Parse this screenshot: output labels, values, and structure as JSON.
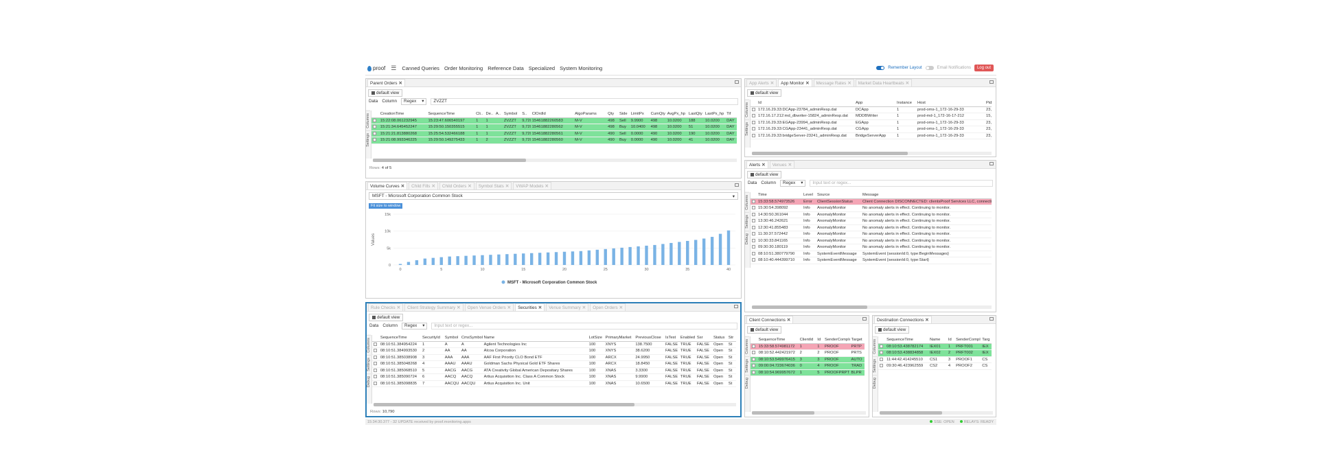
{
  "nav": {
    "logo": "proof",
    "menu": [
      "Canned Queries",
      "Order Monitoring",
      "Reference Data",
      "Specialized",
      "System Monitoring"
    ],
    "remember": "Remember Layout",
    "email": "Email Notifications",
    "logout": "Log out"
  },
  "po": {
    "tab": "Parent Orders",
    "view": "default view",
    "data": "Data",
    "column": "Column",
    "regex": "Regex",
    "filter": "ZVZZT",
    "cols": [
      "CreationTime",
      "SequenceTime",
      "Cli..",
      "De..",
      "A..",
      "Symbol",
      "S..",
      "ClOrdId",
      "AlgoParams",
      "Qty",
      "Side",
      "LimitPx",
      "CumQty",
      "AvgPx_hp",
      "LastQty",
      "LastPx_hp",
      "Tif"
    ],
    "rows": [
      [
        "15:22:08.061232945",
        "15:23:47.606540197",
        "1",
        "1",
        "",
        "ZVZZT",
        "9,720",
        "15461882260583",
        "M-V",
        "498",
        "Sell",
        "9.9900",
        "498",
        "10.0200",
        "188",
        "10.0200",
        "DAY"
      ],
      [
        "15:21:34.645452247",
        "15:29:50.150355515",
        "1",
        "1",
        "",
        "ZVZZT",
        "9,720",
        "15461882280562",
        "M-V",
        "498",
        "Buy",
        "10.0400",
        "498",
        "10.0200",
        "51",
        "10.0200",
        "DAY"
      ],
      [
        "15:21:21.813880268",
        "15:25:54.532466188",
        "1",
        "1",
        "",
        "ZVZZT",
        "9,720",
        "15461882280561",
        "M-V",
        "490",
        "Sell",
        "0.0000",
        "490",
        "10.0200",
        "190",
        "10.0200",
        "DAY"
      ],
      [
        "15:21:08.993346225",
        "15:29:50.149275433",
        "1",
        "2",
        "",
        "ZVZZT",
        "9,720",
        "15461882280560",
        "M-V",
        "490",
        "Buy",
        "0.0000",
        "490",
        "10.0200",
        "41",
        "10.0200",
        "DAY"
      ]
    ],
    "rowsLabel": "Rows:",
    "rowsCount": "4 of 5"
  },
  "vc": {
    "tabs": [
      "Volume Curves",
      "Child Fills",
      "Child Orders",
      "Symbol Stats",
      "VWAP Models"
    ],
    "symbol": "MSFT - Microsoft Corporation Common Stock",
    "fit": "Fit size to window"
  },
  "chart_data": {
    "type": "bar",
    "ylabel": "Values",
    "yticks": [
      "15k",
      "10k",
      "5k",
      "0"
    ],
    "ylim": [
      0,
      15000
    ],
    "xticks": [
      "0",
      "5",
      "10",
      "15",
      "20",
      "25",
      "30",
      "35",
      "40"
    ],
    "series": [
      {
        "name": "MSFT - Microsoft Corporation Common Stock",
        "values": [
          300,
          900,
          1400,
          1900,
          2100,
          2300,
          2500,
          2600,
          2700,
          2800,
          2900,
          3000,
          3100,
          3200,
          3300,
          3400,
          3500,
          3600,
          3700,
          3800,
          3900,
          4000,
          4100,
          4300,
          4500,
          4700,
          4900,
          5100,
          5300,
          5500,
          5700,
          5900,
          6200,
          6500,
          6800,
          7100,
          7400,
          7800,
          8300,
          9200,
          10200
        ]
      }
    ],
    "legend": "bottom",
    "color": "#7ab3e5"
  },
  "sec": {
    "tabs": [
      "Rule Checks",
      "Client Strategy Summary",
      "Open Venue Orders",
      "Securities",
      "Venue Summary",
      "Open Orders"
    ],
    "view": "default view",
    "data": "Data",
    "column": "Column",
    "regex": "Regex",
    "placeholder": "Input text or regex...",
    "cols": [
      "SequenceTime",
      "SecurityId",
      "Symbol",
      "CmsSymbol",
      "Name",
      "LotSize",
      "PrimaryMarket",
      "PreviousClose",
      "IsTest",
      "Enabled",
      "Ssr",
      "Status",
      "Str"
    ],
    "rows": [
      [
        "08:10:51.384954224",
        "1",
        "A",
        "A",
        "Agilent Technologies Inc",
        "100",
        "XNYS",
        "138.7500",
        "FALSE",
        "TRUE",
        "FALSE",
        "Open",
        "St"
      ],
      [
        "08:10:51.384993530",
        "2",
        "AA",
        "AA",
        "Alcoa Corporation",
        "100",
        "XNYS",
        "38.6200",
        "FALSE",
        "TRUE",
        "FALSE",
        "Open",
        "St"
      ],
      [
        "08:10:51.385038908",
        "3",
        "AAA",
        "AAA",
        "AAF First Priority CLO Bond ETF",
        "100",
        "ARCX",
        "24.9950",
        "FALSE",
        "TRUE",
        "FALSE",
        "Open",
        "St"
      ],
      [
        "08:10:51.385048268",
        "4",
        "AAAU",
        "AAAU",
        "Goldman Sachs Physical Gold ETF Shares",
        "100",
        "ARCX",
        "18.8450",
        "FALSE",
        "TRUE",
        "FALSE",
        "Open",
        "St"
      ],
      [
        "08:10:51.385068510",
        "5",
        "AACG",
        "AACG",
        "ATA Creativity Global American Depositary Shares",
        "100",
        "XNAS",
        "3.3300",
        "FALSE",
        "TRUE",
        "FALSE",
        "Open",
        "St"
      ],
      [
        "08:10:51.385090724",
        "6",
        "AACQ",
        "AACQ",
        "Artius Acquisition Inc. Class A Common Stock",
        "100",
        "XNAS",
        "9.9900",
        "FALSE",
        "TRUE",
        "FALSE",
        "Open",
        "St"
      ],
      [
        "08:10:51.385098835",
        "7",
        "AACQU",
        "AACQU",
        "Artius Acquisition Inc. Unit",
        "100",
        "XNAS",
        "10.6500",
        "FALSE",
        "TRUE",
        "FALSE",
        "Open",
        "St"
      ]
    ],
    "rowsLabel": "Rows:",
    "rowsCount": "10,790"
  },
  "am": {
    "tabs": [
      "App Alerts",
      "App Monitor",
      "Message Rates",
      "Market Data Heartbeats"
    ],
    "view": "default view",
    "cols": [
      "Id",
      "App",
      "Instance",
      "Host",
      "Pid"
    ],
    "rows": [
      [
        "172.16.29.33:DCApp-23784_adminResp.dat",
        "DCApp",
        "1",
        "prod-oms-1_172-16-29-33",
        "23,784"
      ],
      [
        "172.16.17.212:md_dbwriter-15824_adminResp.dat",
        "MDDBWriter",
        "1",
        "prod-md-1_172-16-17-212",
        "15,824"
      ],
      [
        "172.16.29.33:EGApp-23994_adminResp.dat",
        "EGApp",
        "1",
        "prod-oms-1_172-16-29-33",
        "23,994"
      ],
      [
        "172.16.29.33:CGApp-23441_adminResp.dat",
        "CGApp",
        "1",
        "prod-oms-1_172-16-29-33",
        "23,441"
      ],
      [
        "172.16.29.33:bridgeServer-23241_adminResp.dat",
        "BridgeServerApp",
        "1",
        "prod-oms-1_172-16-29-33",
        "23,241"
      ]
    ]
  },
  "al": {
    "tabs": [
      "Alerts",
      "Venues"
    ],
    "view": "default view",
    "data": "Data",
    "column": "Column",
    "regex": "Regex",
    "placeholder": "Input text or regex...",
    "cols": [
      "Time",
      "Level",
      "Source",
      "Message"
    ],
    "rows": [
      [
        "15:33:58.574973526",
        "Error",
        "ClientSessionStatus",
        "Client Connection DISCONNECTED: clientsProof Services LLC, connectionId"
      ],
      [
        "15:30:54.398092",
        "Info",
        "AnomalyMonitor",
        "No anomaly alerts in effect. Continuing to monitor."
      ],
      [
        "14:30:50.361044",
        "Info",
        "AnomalyMonitor",
        "No anomaly alerts in effect. Continuing to monitor."
      ],
      [
        "13:30:46.242621",
        "Info",
        "AnomalyMonitor",
        "No anomaly alerts in effect. Continuing to monitor."
      ],
      [
        "12:30:41.855483",
        "Info",
        "AnomalyMonitor",
        "No anomaly alerts in effect. Continuing to monitor."
      ],
      [
        "11:30:37.572442",
        "Info",
        "AnomalyMonitor",
        "No anomaly alerts in effect. Continuing to monitor."
      ],
      [
        "10:30:33.841165",
        "Info",
        "AnomalyMonitor",
        "No anomaly alerts in effect. Continuing to monitor."
      ],
      [
        "09:30:30.180119",
        "Info",
        "AnomalyMonitor",
        "No anomaly alerts in effect. Continuing to monitor."
      ],
      [
        "08:10:51.380779790",
        "Info",
        "SystemEventMessage",
        "SystemEvent {sessionId:0, type:BeginMessages}"
      ],
      [
        "08:10:40.444399710",
        "Info",
        "SystemEventMessage",
        "SystemEvent {sessionId:0, type:Start}"
      ]
    ]
  },
  "cc": {
    "tab": "Client Connections",
    "view": "default view",
    "cols": [
      "SequenceTime",
      "ClientId",
      "Id",
      "SenderCompId",
      "Target"
    ],
    "rows": [
      [
        "15:33:58.574981172",
        "1",
        "1",
        "PROOF",
        "PRTP"
      ],
      [
        "08:10:52.442421972",
        "2",
        "2",
        "PROOF",
        "PRTS"
      ],
      [
        "08:10:53.549976415",
        "3",
        "3",
        "PROOF",
        "AUTO"
      ],
      [
        "09:00:04.723674036",
        "0",
        "4",
        "PROOF",
        "TRAD"
      ],
      [
        "08:10:54.969957672",
        "1",
        "5",
        "PROOFPRPT",
        "BLPR"
      ]
    ]
  },
  "dc": {
    "tab": "Destination Connections",
    "view": "default view",
    "cols": [
      "SequenceTime",
      "Name",
      "Id",
      "SenderCompId",
      "Targ"
    ],
    "rows": [
      [
        "08:10:53.438782174",
        "IEX01",
        "1",
        "PRFT001",
        "IEX"
      ],
      [
        "08:10:53.438834858",
        "IEX02",
        "2",
        "PRFT002",
        "IEX"
      ],
      [
        "11:44:42.414245510",
        "CS1",
        "3",
        "PROOF1",
        "CS"
      ],
      [
        "09:30:46.423962559",
        "CS2",
        "4",
        "PROOF2",
        "CS"
      ]
    ]
  },
  "status": {
    "left": "15:34:30.377 - 32 UPDATE received by proof.monitoring.apps",
    "sse": "SSE: OPEN",
    "relay": "RELAYS: READY"
  }
}
